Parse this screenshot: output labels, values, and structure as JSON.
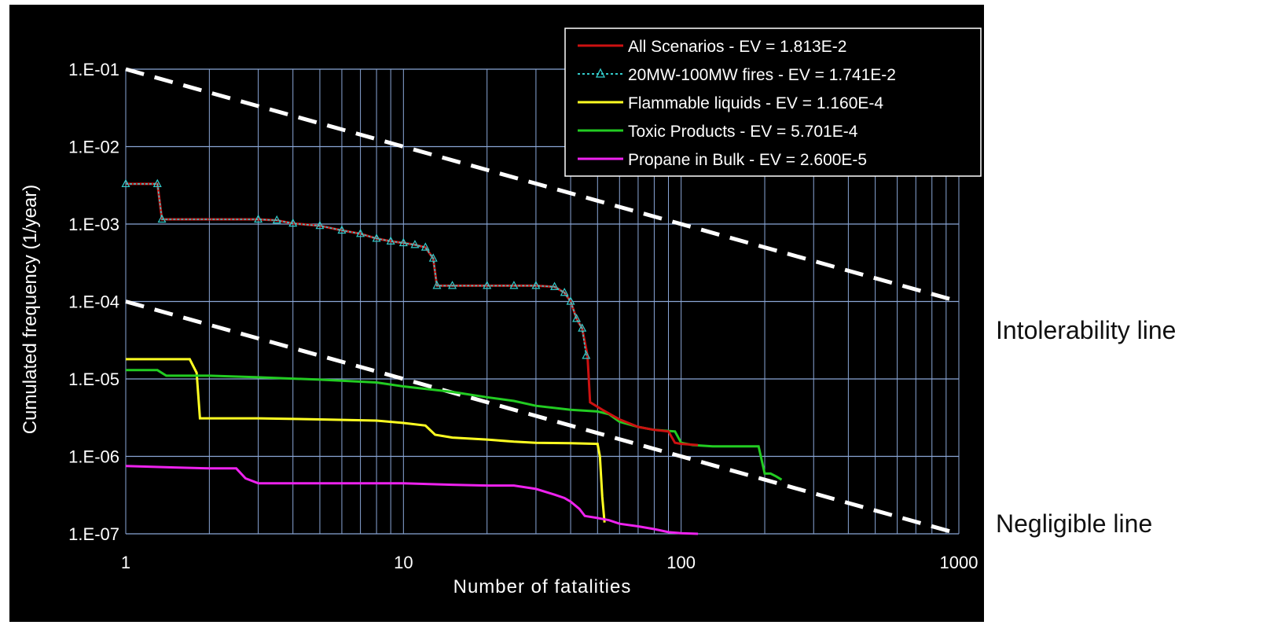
{
  "chart_data": {
    "type": "line",
    "title": "",
    "xlabel": "Number of fatalities",
    "ylabel": "Cumulated frequency (1/year)",
    "xscale": "log",
    "yscale": "log",
    "xlim": [
      1,
      1000
    ],
    "ylim": [
      1e-07,
      0.1
    ],
    "x_ticks": [
      1,
      10,
      100,
      1000
    ],
    "x_tick_labels": [
      "1",
      "10",
      "100",
      "1000"
    ],
    "y_ticks": [
      1e-07,
      1e-06,
      1e-05,
      0.0001,
      0.001,
      0.01,
      0.1
    ],
    "y_tick_labels": [
      "1.E-07",
      "1.E-06",
      "1.E-05",
      "1.E-04",
      "1.E-03",
      "1.E-02",
      "1.E-01"
    ],
    "grid": true,
    "legend_position": "top-right",
    "background": "#000000",
    "series": [
      {
        "name": "All Scenarios - EV = 1.813E-2",
        "color": "#cc1111",
        "marker": "none",
        "x": [
          1,
          1.3,
          1.35,
          3,
          3.5,
          4,
          5,
          6,
          7,
          8,
          9,
          10,
          11,
          12,
          12.8,
          13.2,
          15,
          20,
          25,
          30,
          35,
          38,
          40,
          42,
          44,
          46,
          47,
          52,
          60,
          70,
          80,
          90,
          95,
          100,
          115
        ],
        "y": [
          0.0033,
          0.0033,
          0.00115,
          0.00115,
          0.00112,
          0.00102,
          0.00095,
          0.00083,
          0.00075,
          0.00065,
          0.0006,
          0.00057,
          0.00054,
          0.0005,
          0.00036,
          0.00016,
          0.00016,
          0.00016,
          0.00016,
          0.00016,
          0.000155,
          0.00013,
          0.0001,
          6e-05,
          4.5e-05,
          2e-05,
          5e-06,
          4e-06,
          3e-06,
          2.4e-06,
          2.2e-06,
          2.1e-06,
          1.5e-06,
          1.45e-06,
          1.4e-06
        ]
      },
      {
        "name": "20MW-100MW fires - EV = 1.741E-2",
        "color": "#33cccc",
        "marker": "triangle",
        "x": [
          1,
          1.3,
          1.35,
          3,
          3.5,
          4,
          5,
          6,
          7,
          8,
          9,
          10,
          11,
          12,
          12.8,
          13.2,
          15,
          20,
          25,
          30,
          35,
          38,
          40,
          42,
          44,
          45.5
        ],
        "y": [
          0.0033,
          0.0033,
          0.00115,
          0.00115,
          0.00112,
          0.00102,
          0.00095,
          0.00083,
          0.00075,
          0.00065,
          0.0006,
          0.00057,
          0.00054,
          0.0005,
          0.00036,
          0.00016,
          0.00016,
          0.00016,
          0.00016,
          0.00016,
          0.000155,
          0.00013,
          0.0001,
          6e-05,
          4.5e-05,
          2e-05
        ]
      },
      {
        "name": "Flammable liquids - EV = 1.160E-4",
        "color": "#ffff22",
        "marker": "none",
        "x": [
          1,
          1.7,
          1.8,
          1.85,
          3,
          5,
          8,
          10,
          12,
          13,
          15,
          20,
          25,
          30,
          40,
          50,
          51,
          52,
          53
        ],
        "y": [
          1.8e-05,
          1.8e-05,
          1.2e-05,
          3.1e-06,
          3.1e-06,
          3e-06,
          2.9e-06,
          2.7e-06,
          2.5e-06,
          1.9e-06,
          1.75e-06,
          1.65e-06,
          1.55e-06,
          1.5e-06,
          1.48e-06,
          1.45e-06,
          1e-06,
          3e-07,
          1.4e-07
        ]
      },
      {
        "name": "Toxic Products - EV = 5.701E-4",
        "color": "#22cc22",
        "marker": "none",
        "x": [
          1,
          1.3,
          1.4,
          2,
          3,
          5,
          8,
          10,
          15,
          20,
          25,
          30,
          40,
          50,
          55,
          60,
          70,
          80,
          95,
          100,
          110,
          130,
          150,
          190,
          200,
          210,
          220,
          230
        ],
        "y": [
          1.3e-05,
          1.3e-05,
          1.1e-05,
          1.1e-05,
          1.05e-05,
          9.8e-06,
          9e-06,
          8e-06,
          6.8e-06,
          5.8e-06,
          5.2e-06,
          4.5e-06,
          4e-06,
          3.8e-06,
          3.5e-06,
          2.8e-06,
          2.4e-06,
          2.2e-06,
          2.1e-06,
          1.5e-06,
          1.4e-06,
          1.35e-06,
          1.35e-06,
          1.35e-06,
          6e-07,
          6e-07,
          5.5e-07,
          5e-07
        ]
      },
      {
        "name": "Propane in Bulk - EV = 2.600E-5",
        "color": "#ee22ee",
        "marker": "none",
        "x": [
          1,
          1.5,
          2,
          2.5,
          2.7,
          3,
          5,
          10,
          15,
          20,
          25,
          30,
          35,
          38,
          40,
          43,
          45,
          50,
          55,
          60,
          70,
          80,
          90,
          100,
          115
        ],
        "y": [
          7.5e-07,
          7.2e-07,
          7e-07,
          7e-07,
          5.2e-07,
          4.5e-07,
          4.5e-07,
          4.5e-07,
          4.3e-07,
          4.2e-07,
          4.2e-07,
          3.8e-07,
          3.2e-07,
          2.9e-07,
          2.6e-07,
          2.1e-07,
          1.7e-07,
          1.6e-07,
          1.5e-07,
          1.35e-07,
          1.25e-07,
          1.15e-07,
          1.05e-07,
          1.02e-07,
          1e-07
        ]
      }
    ],
    "criteria_lines": [
      {
        "x": [
          1,
          1000
        ],
        "y": [
          0.1,
          0.0001
        ],
        "color": "#ffffff",
        "style": "dashed"
      },
      {
        "x": [
          1,
          1000
        ],
        "y": [
          0.0001,
          1e-07
        ],
        "color": "#ffffff",
        "style": "dashed"
      }
    ],
    "annotations": {
      "intolerability": "Intolerability line",
      "negligible": "Negligible line"
    }
  }
}
